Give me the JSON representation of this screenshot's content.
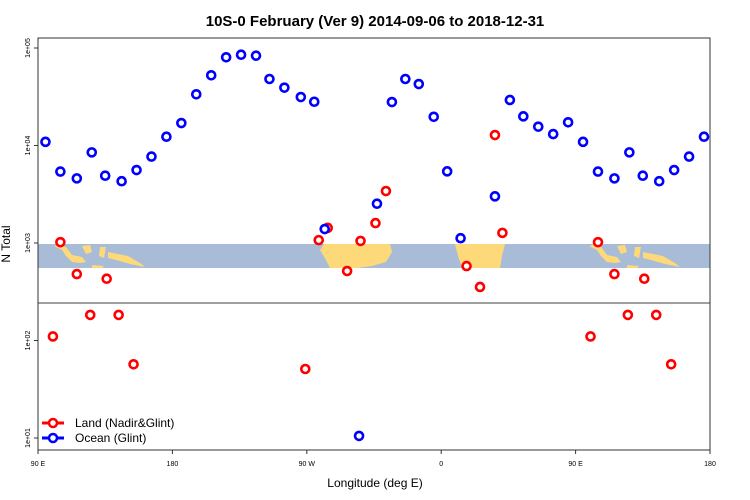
{
  "chart_data": {
    "type": "scatter",
    "title": "10S-0 February (Ver 9)   2014-09-06 to 2018-12-31",
    "xlabel": "Longitude (deg E)",
    "ylabel": "N Total",
    "y_scale": "log",
    "ylim": [
      10,
      100000
    ],
    "xlim_deg_east_start": "90 E",
    "x_tick_labels": [
      "90 E",
      "180",
      "90 W",
      "0",
      "90 E",
      "180"
    ],
    "y_tick_labels": [
      "1e+01",
      "1e+02",
      "1e+03",
      "1e+04",
      "1e+05"
    ],
    "legend_position": "bottom-left",
    "grid": false,
    "background_map": "land/ocean strip 10S-0",
    "colors": {
      "land": "#ff0000",
      "ocean": "#0000ff",
      "map_ocean": "#a8bcd8",
      "map_land": "#fdd97a"
    },
    "series": [
      {
        "name": "Land (Nadir&Glint)",
        "color": "#ff0000",
        "points": [
          {
            "lon": 100,
            "n": 110
          },
          {
            "lon": 105,
            "n": 1020
          },
          {
            "lon": 116,
            "n": 480
          },
          {
            "lon": 125,
            "n": 183
          },
          {
            "lon": 136,
            "n": 430
          },
          {
            "lon": 144,
            "n": 183
          },
          {
            "lon": 154,
            "n": 57
          },
          {
            "lon": -91,
            "n": 51
          },
          {
            "lon": -82,
            "n": 1070
          },
          {
            "lon": -76,
            "n": 1430
          },
          {
            "lon": -63,
            "n": 516
          },
          {
            "lon": -54,
            "n": 1050
          },
          {
            "lon": -44,
            "n": 1600
          },
          {
            "lon": -37,
            "n": 3410
          },
          {
            "lon": 17,
            "n": 580
          },
          {
            "lon": 26,
            "n": 354
          },
          {
            "lon": 36,
            "n": 12800
          },
          {
            "lon": 41,
            "n": 1270
          }
        ]
      },
      {
        "name": "Ocean (Glint)",
        "color": "#0000ff",
        "points": [
          {
            "lon": 95,
            "n": 10900
          },
          {
            "lon": 105,
            "n": 5400
          },
          {
            "lon": 116,
            "n": 4600
          },
          {
            "lon": 126,
            "n": 8500
          },
          {
            "lon": 135,
            "n": 4900
          },
          {
            "lon": 146,
            "n": 4300
          },
          {
            "lon": 156,
            "n": 5600
          },
          {
            "lon": 166,
            "n": 7700
          },
          {
            "lon": 176,
            "n": 12300
          },
          {
            "lon": -174,
            "n": 17000
          },
          {
            "lon": -164,
            "n": 33500
          },
          {
            "lon": -154,
            "n": 52500
          },
          {
            "lon": -144,
            "n": 80300
          },
          {
            "lon": -134,
            "n": 85300
          },
          {
            "lon": -124,
            "n": 83400
          },
          {
            "lon": -115,
            "n": 48100
          },
          {
            "lon": -105,
            "n": 39200
          },
          {
            "lon": -94,
            "n": 31400
          },
          {
            "lon": -85,
            "n": 28100
          },
          {
            "lon": -78,
            "n": 1390
          },
          {
            "lon": -55,
            "n": 10.5
          },
          {
            "lon": -43,
            "n": 2530
          },
          {
            "lon": -33,
            "n": 27900
          },
          {
            "lon": -24,
            "n": 48100
          },
          {
            "lon": -15,
            "n": 42700
          },
          {
            "lon": -5,
            "n": 19700
          },
          {
            "lon": 4,
            "n": 5430
          },
          {
            "lon": 13,
            "n": 1120
          },
          {
            "lon": 36,
            "n": 3010
          },
          {
            "lon": 46,
            "n": 29300
          },
          {
            "lon": 55,
            "n": 19900
          },
          {
            "lon": 65,
            "n": 15600
          },
          {
            "lon": 75,
            "n": 13100
          },
          {
            "lon": 85,
            "n": 17300
          }
        ]
      }
    ]
  }
}
